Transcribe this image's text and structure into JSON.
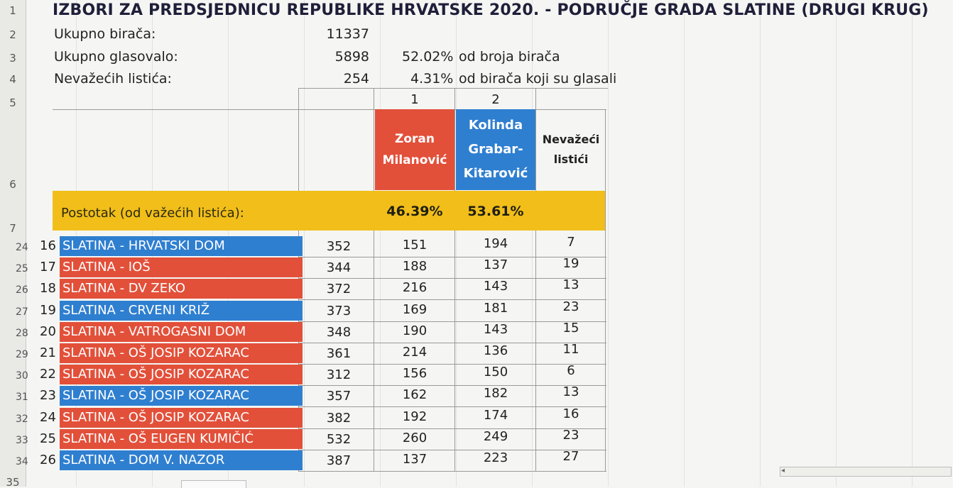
{
  "title": "IZBORI ZA PREDSJEDNICU REPUBLIKE HRVATSKE 2020. - PODRUČJE GRADA SLATINE (DRUGI KRUG)",
  "row_numbers": [
    "1",
    "2",
    "3",
    "4",
    "5",
    "6",
    "7",
    "24",
    "25",
    "26",
    "27",
    "28",
    "29",
    "30",
    "31",
    "32",
    "33",
    "34",
    "35"
  ],
  "summary": {
    "registered_label": "Ukupno birača:",
    "registered_value": "11337",
    "voted_label": "Ukupno glasovalo:",
    "voted_value": "5898",
    "voted_pct": "52.02%",
    "voted_pct_note": "od broja birača",
    "invalid_label": "Nevažećih listića:",
    "invalid_value": "254",
    "invalid_pct": "4.31%",
    "invalid_pct_note": "od birača koji su glasali"
  },
  "column_numbers": [
    "1",
    "2"
  ],
  "headers": {
    "cand1_line1": "Zoran",
    "cand1_line2": "Milanović",
    "cand2_line1": "Kolinda",
    "cand2_line2": "Grabar-",
    "cand2_line3": "Kitarović",
    "invalid_line1": "Nevažeći",
    "invalid_line2": "listići"
  },
  "percent_row": {
    "label": "Postotak (od važećih listića):",
    "cand1": "46.39%",
    "cand2": "53.61%"
  },
  "colors": {
    "red": "#e2503a",
    "blue": "#2f7fd0",
    "yellow": "#f1be1a"
  },
  "rows": [
    {
      "rownum": "24",
      "seq": "16",
      "name": "SLATINA  - HRVATSKI DOM",
      "color": "blue",
      "voters": "352",
      "c1": "151",
      "c2": "194",
      "inv": "7"
    },
    {
      "rownum": "25",
      "seq": "17",
      "name": "SLATINA - IOŠ",
      "color": "red",
      "voters": "344",
      "c1": "188",
      "c2": "137",
      "inv": "19"
    },
    {
      "rownum": "26",
      "seq": "18",
      "name": "SLATINA  - DV ZEKO",
      "color": "red",
      "voters": "372",
      "c1": "216",
      "c2": "143",
      "inv": "13"
    },
    {
      "rownum": "27",
      "seq": "19",
      "name": "SLATINA - CRVENI KRIŽ",
      "color": "blue",
      "voters": "373",
      "c1": "169",
      "c2": "181",
      "inv": "23"
    },
    {
      "rownum": "28",
      "seq": "20",
      "name": "SLATINA - VATROGASNI DOM",
      "color": "red",
      "voters": "348",
      "c1": "190",
      "c2": "143",
      "inv": "15"
    },
    {
      "rownum": "29",
      "seq": "21",
      "name": "SLATINA - OŠ JOSIP KOZARAC",
      "color": "red",
      "voters": "361",
      "c1": "214",
      "c2": "136",
      "inv": "11"
    },
    {
      "rownum": "30",
      "seq": "22",
      "name": "SLATINA - OŠ JOSIP KOZARAC",
      "color": "red",
      "voters": "312",
      "c1": "156",
      "c2": "150",
      "inv": "6"
    },
    {
      "rownum": "31",
      "seq": "23",
      "name": "SLATINA - OŠ JOSIP KOZARAC",
      "color": "blue",
      "voters": "357",
      "c1": "162",
      "c2": "182",
      "inv": "13"
    },
    {
      "rownum": "32",
      "seq": "24",
      "name": "SLATINA - OŠ JOSIP KOZARAC",
      "color": "red",
      "voters": "382",
      "c1": "192",
      "c2": "174",
      "inv": "16"
    },
    {
      "rownum": "33",
      "seq": "25",
      "name": "SLATINA - OŠ EUGEN KUMIČIĆ",
      "color": "red",
      "voters": "532",
      "c1": "260",
      "c2": "249",
      "inv": "23"
    },
    {
      "rownum": "34",
      "seq": "26",
      "name": "SLATINA - DOM V. NAZOR",
      "color": "blue",
      "voters": "387",
      "c1": "137",
      "c2": "223",
      "inv": "27"
    }
  ]
}
